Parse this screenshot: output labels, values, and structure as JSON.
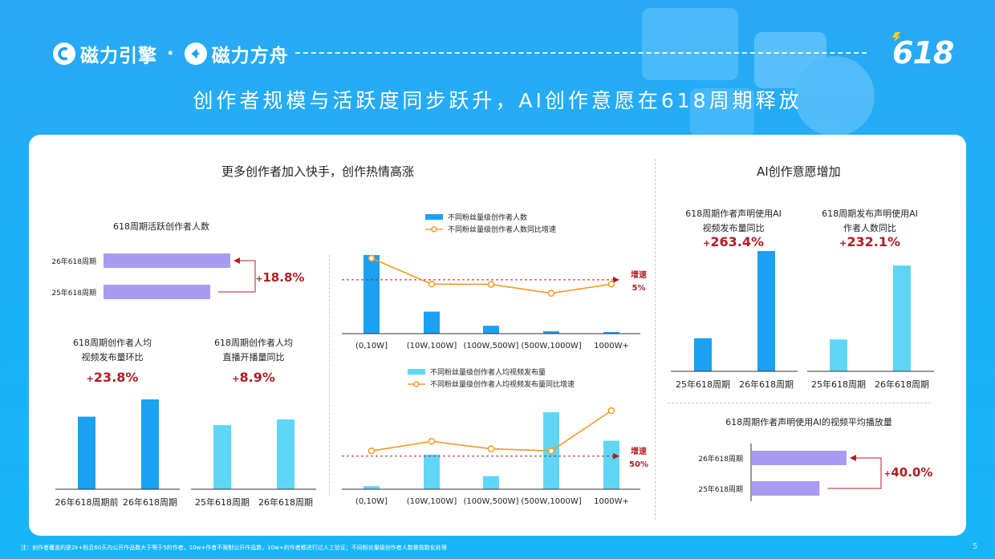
{
  "brand": {
    "name1": "磁力引擎",
    "sep": "·",
    "name2": "磁力方舟",
    "badge": "618"
  },
  "title": "创作者规模与活跃度同步跃升，AI创作意愿在618周期释放",
  "left_section_title": "更多创作者加入快手，创作热情高涨",
  "right_section_title": "AI创作意愿增加",
  "footnote": "注：创作者覆盖的是2k+粉且60天内公开作品数大于等于5的作者，10w+作者不限制公开作品数，10w+的作者都进行过人工验证；不同粉丝量级创作者人数做指数化处理",
  "page_number": "5",
  "colors": {
    "blue": "#1aa1f1",
    "light_blue": "#5fd6f5",
    "purple": "#a99bf1",
    "orange": "#f59a23",
    "red": "#b01e23"
  },
  "chart_data": [
    {
      "id": "active_creators",
      "type": "bar",
      "orientation": "horizontal",
      "title": "618周期活跃创作者人数",
      "categories": [
        "26年618周期",
        "25年618周期"
      ],
      "values": [
        1.188,
        1.0
      ],
      "growth_label": "+18.8%"
    },
    {
      "id": "avg_video_publish",
      "type": "bar",
      "title_line1": "618周期创作者人均",
      "title_line2": "视频发布量环比",
      "categories": [
        "26年618周期前",
        "26年618周期"
      ],
      "values": [
        1.0,
        1.238
      ],
      "growth_label": "+23.8%"
    },
    {
      "id": "avg_live_sessions",
      "type": "bar",
      "title_line1": "618周期创作者人均",
      "title_line2": "直播开播量同比",
      "categories": [
        "25年618周期",
        "26年618周期"
      ],
      "values": [
        1.0,
        1.089
      ],
      "growth_label": "+8.9%"
    },
    {
      "id": "creators_by_fans",
      "type": "bar+line",
      "categories": [
        "(0,10W]",
        "(10W,100W]",
        "(100W,500W]",
        "(500W,1000W]",
        "1000W+"
      ],
      "bar_series": {
        "name": "不同粉丝量级创作者人数",
        "values": [
          100,
          28,
          10,
          3,
          2
        ]
      },
      "line_series": {
        "name": "不同粉丝量级创作者人数同比增速",
        "values": [
          12,
          3.6,
          3.5,
          0.6,
          3.6
        ]
      },
      "reference": {
        "value": 5,
        "label_top": "增速",
        "label_bottom": "5%"
      }
    },
    {
      "id": "avg_video_by_fans",
      "type": "bar+line",
      "categories": [
        "(0,10W]",
        "(10W,100W]",
        "(100W,500W]",
        "(500W,1000W]",
        "1000W+"
      ],
      "bar_series": {
        "name": "不同粉丝量级创作者人均视频发布量",
        "values": [
          4,
          45,
          17,
          100,
          63
        ]
      },
      "line_series": {
        "name": "不同粉丝量级创作者人均视频发布量同比增速",
        "values": [
          55,
          64,
          57,
          55,
          93
        ]
      },
      "reference": {
        "value": 50,
        "label_top": "增速",
        "label_bottom": "50%"
      }
    },
    {
      "id": "ai_video_publish",
      "type": "bar",
      "title_line1": "618周期作者声明使用AI",
      "title_line2": "视频发布量同比",
      "categories": [
        "25年618周期",
        "26年618周期"
      ],
      "values": [
        1.0,
        3.634
      ],
      "growth_label": "+263.4%"
    },
    {
      "id": "ai_creator_count",
      "type": "bar",
      "title_line1": "618周期发布声明使用AI",
      "title_line2": "作者人数同比",
      "categories": [
        "25年618周期",
        "26年618周期"
      ],
      "values": [
        1.0,
        3.321
      ],
      "growth_label": "+232.1%"
    },
    {
      "id": "ai_avg_play",
      "type": "bar",
      "orientation": "horizontal",
      "title": "618周期作者声明使用AI的视频平均播放量",
      "categories": [
        "26年618周期",
        "25年618周期"
      ],
      "values": [
        1.4,
        1.0
      ],
      "growth_label": "+40.0%"
    }
  ]
}
